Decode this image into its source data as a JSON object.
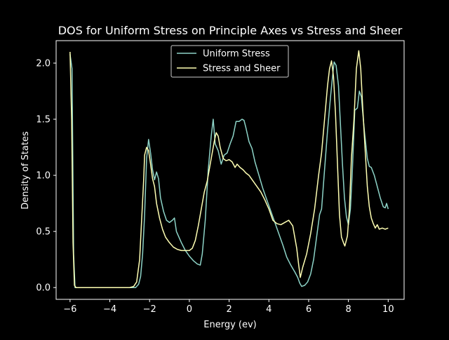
{
  "chart_data": {
    "type": "line",
    "title": "DOS for Uniform Stress on Principle Axes vs Stress and Sheer",
    "xlabel": "Energy (ev)",
    "ylabel": "Density of States",
    "xlim": [
      -6.7,
      10.8
    ],
    "ylim": [
      -0.105,
      2.2
    ],
    "xticks": [
      -6,
      -4,
      -2,
      0,
      2,
      4,
      6,
      8,
      10
    ],
    "yticks": [
      0.0,
      0.5,
      1.0,
      1.5,
      2.0
    ],
    "xtick_labels": [
      "−6",
      "−4",
      "−2",
      "0",
      "2",
      "4",
      "6",
      "8",
      "10"
    ],
    "ytick_labels": [
      "0.0",
      "0.5",
      "1.0",
      "1.5",
      "2.0"
    ],
    "grid": false,
    "legend_position": "top-center",
    "series": [
      {
        "name": "Uniform Stress",
        "color": "#8dd3c7",
        "points": [
          [
            -6.0,
            2.08
          ],
          [
            -5.9,
            1.95
          ],
          [
            -5.82,
            0.3
          ],
          [
            -5.75,
            0.0
          ],
          [
            -5.0,
            0.0
          ],
          [
            -4.0,
            0.0
          ],
          [
            -3.0,
            0.0
          ],
          [
            -2.7,
            0.0
          ],
          [
            -2.55,
            0.03
          ],
          [
            -2.45,
            0.1
          ],
          [
            -2.35,
            0.3
          ],
          [
            -2.25,
            0.65
          ],
          [
            -2.15,
            1.15
          ],
          [
            -2.05,
            1.32
          ],
          [
            -1.95,
            1.2
          ],
          [
            -1.85,
            1.05
          ],
          [
            -1.75,
            0.96
          ],
          [
            -1.65,
            1.03
          ],
          [
            -1.55,
            0.97
          ],
          [
            -1.45,
            0.8
          ],
          [
            -1.3,
            0.68
          ],
          [
            -1.15,
            0.6
          ],
          [
            -1.0,
            0.58
          ],
          [
            -0.85,
            0.6
          ],
          [
            -0.75,
            0.62
          ],
          [
            -0.65,
            0.5
          ],
          [
            -0.4,
            0.4
          ],
          [
            -0.2,
            0.33
          ],
          [
            0.0,
            0.28
          ],
          [
            0.2,
            0.24
          ],
          [
            0.4,
            0.21
          ],
          [
            0.55,
            0.2
          ],
          [
            0.65,
            0.3
          ],
          [
            0.8,
            0.6
          ],
          [
            0.95,
            1.05
          ],
          [
            1.1,
            1.35
          ],
          [
            1.2,
            1.5
          ],
          [
            1.3,
            1.28
          ],
          [
            1.45,
            1.22
          ],
          [
            1.6,
            1.1
          ],
          [
            1.75,
            1.18
          ],
          [
            1.9,
            1.2
          ],
          [
            2.05,
            1.28
          ],
          [
            2.2,
            1.35
          ],
          [
            2.35,
            1.48
          ],
          [
            2.5,
            1.48
          ],
          [
            2.65,
            1.5
          ],
          [
            2.75,
            1.49
          ],
          [
            2.85,
            1.42
          ],
          [
            3.0,
            1.3
          ],
          [
            3.15,
            1.24
          ],
          [
            3.3,
            1.12
          ],
          [
            3.5,
            1.0
          ],
          [
            3.7,
            0.88
          ],
          [
            3.9,
            0.78
          ],
          [
            4.1,
            0.68
          ],
          [
            4.3,
            0.58
          ],
          [
            4.5,
            0.48
          ],
          [
            4.7,
            0.38
          ],
          [
            4.9,
            0.27
          ],
          [
            5.1,
            0.2
          ],
          [
            5.3,
            0.14
          ],
          [
            5.45,
            0.09
          ],
          [
            5.55,
            0.04
          ],
          [
            5.65,
            0.01
          ],
          [
            5.8,
            0.02
          ],
          [
            5.95,
            0.05
          ],
          [
            6.1,
            0.12
          ],
          [
            6.25,
            0.25
          ],
          [
            6.4,
            0.45
          ],
          [
            6.55,
            0.65
          ],
          [
            6.65,
            0.7
          ],
          [
            6.8,
            1.05
          ],
          [
            6.95,
            1.4
          ],
          [
            7.1,
            1.7
          ],
          [
            7.2,
            1.88
          ],
          [
            7.28,
            2.01
          ],
          [
            7.38,
            1.98
          ],
          [
            7.5,
            1.8
          ],
          [
            7.6,
            1.45
          ],
          [
            7.7,
            1.1
          ],
          [
            7.8,
            0.8
          ],
          [
            7.9,
            0.63
          ],
          [
            8.0,
            0.56
          ],
          [
            8.1,
            0.7
          ],
          [
            8.2,
            1.05
          ],
          [
            8.32,
            1.58
          ],
          [
            8.45,
            1.6
          ],
          [
            8.55,
            1.75
          ],
          [
            8.65,
            1.7
          ],
          [
            8.8,
            1.4
          ],
          [
            8.95,
            1.15
          ],
          [
            9.05,
            1.08
          ],
          [
            9.15,
            1.07
          ],
          [
            9.3,
            1.0
          ],
          [
            9.45,
            0.9
          ],
          [
            9.6,
            0.8
          ],
          [
            9.75,
            0.72
          ],
          [
            9.85,
            0.71
          ],
          [
            9.92,
            0.75
          ],
          [
            10.0,
            0.7
          ]
        ]
      },
      {
        "name": "Stress and Sheer",
        "color": "#ffffb3",
        "points": [
          [
            -6.0,
            2.1
          ],
          [
            -5.92,
            1.5
          ],
          [
            -5.85,
            0.4
          ],
          [
            -5.78,
            0.02
          ],
          [
            -5.7,
            0.0
          ],
          [
            -5.0,
            0.0
          ],
          [
            -4.0,
            0.0
          ],
          [
            -3.0,
            0.0
          ],
          [
            -2.8,
            0.01
          ],
          [
            -2.65,
            0.05
          ],
          [
            -2.5,
            0.25
          ],
          [
            -2.4,
            0.6
          ],
          [
            -2.3,
            0.95
          ],
          [
            -2.25,
            1.18
          ],
          [
            -2.15,
            1.25
          ],
          [
            -2.05,
            1.22
          ],
          [
            -1.95,
            1.1
          ],
          [
            -1.85,
            0.97
          ],
          [
            -1.75,
            0.9
          ],
          [
            -1.65,
            0.75
          ],
          [
            -1.5,
            0.62
          ],
          [
            -1.35,
            0.52
          ],
          [
            -1.2,
            0.45
          ],
          [
            -1.0,
            0.4
          ],
          [
            -0.8,
            0.36
          ],
          [
            -0.6,
            0.34
          ],
          [
            -0.4,
            0.33
          ],
          [
            -0.2,
            0.33
          ],
          [
            0.0,
            0.33
          ],
          [
            0.15,
            0.35
          ],
          [
            0.3,
            0.42
          ],
          [
            0.45,
            0.55
          ],
          [
            0.6,
            0.7
          ],
          [
            0.75,
            0.85
          ],
          [
            0.9,
            0.95
          ],
          [
            1.05,
            1.1
          ],
          [
            1.15,
            1.2
          ],
          [
            1.25,
            1.3
          ],
          [
            1.35,
            1.38
          ],
          [
            1.45,
            1.35
          ],
          [
            1.55,
            1.25
          ],
          [
            1.7,
            1.15
          ],
          [
            1.85,
            1.13
          ],
          [
            2.0,
            1.14
          ],
          [
            2.15,
            1.12
          ],
          [
            2.3,
            1.07
          ],
          [
            2.4,
            1.1
          ],
          [
            2.55,
            1.07
          ],
          [
            2.7,
            1.05
          ],
          [
            2.85,
            1.02
          ],
          [
            3.0,
            1.0
          ],
          [
            3.2,
            0.95
          ],
          [
            3.4,
            0.9
          ],
          [
            3.6,
            0.85
          ],
          [
            3.8,
            0.78
          ],
          [
            4.0,
            0.7
          ],
          [
            4.2,
            0.6
          ],
          [
            4.4,
            0.57
          ],
          [
            4.6,
            0.56
          ],
          [
            4.8,
            0.58
          ],
          [
            5.0,
            0.6
          ],
          [
            5.2,
            0.55
          ],
          [
            5.4,
            0.35
          ],
          [
            5.5,
            0.2
          ],
          [
            5.58,
            0.09
          ],
          [
            5.7,
            0.18
          ],
          [
            5.9,
            0.3
          ],
          [
            6.1,
            0.48
          ],
          [
            6.3,
            0.7
          ],
          [
            6.5,
            1.0
          ],
          [
            6.65,
            1.2
          ],
          [
            6.8,
            1.5
          ],
          [
            6.95,
            1.8
          ],
          [
            7.05,
            1.95
          ],
          [
            7.15,
            2.02
          ],
          [
            7.25,
            1.88
          ],
          [
            7.35,
            1.55
          ],
          [
            7.45,
            1.1
          ],
          [
            7.55,
            0.65
          ],
          [
            7.65,
            0.45
          ],
          [
            7.75,
            0.4
          ],
          [
            7.82,
            0.37
          ],
          [
            7.95,
            0.46
          ],
          [
            8.05,
            0.7
          ],
          [
            8.15,
            1.15
          ],
          [
            8.28,
            1.5
          ],
          [
            8.4,
            1.95
          ],
          [
            8.52,
            2.11
          ],
          [
            8.62,
            1.95
          ],
          [
            8.72,
            1.6
          ],
          [
            8.85,
            1.2
          ],
          [
            8.95,
            0.9
          ],
          [
            9.05,
            0.72
          ],
          [
            9.15,
            0.62
          ],
          [
            9.25,
            0.57
          ],
          [
            9.35,
            0.53
          ],
          [
            9.45,
            0.56
          ],
          [
            9.55,
            0.52
          ],
          [
            9.7,
            0.53
          ],
          [
            9.85,
            0.52
          ],
          [
            10.0,
            0.53
          ]
        ]
      }
    ]
  }
}
